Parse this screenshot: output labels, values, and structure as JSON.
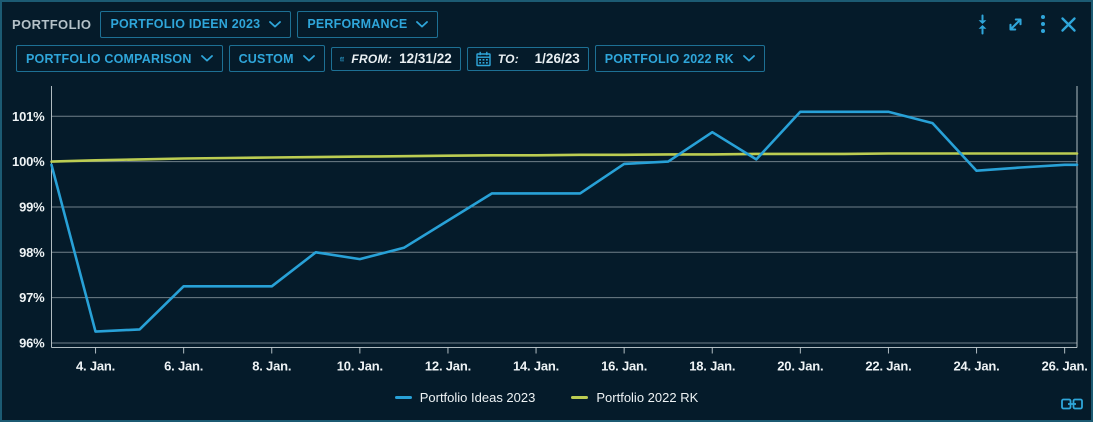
{
  "header": {
    "app_label": "PORTFOLIO",
    "portfolio_select": "PORTFOLIO IDEEN 2023",
    "view_select": "PERFORMANCE",
    "icons": [
      "collapse-vertical-icon",
      "expand-icon",
      "kebab-menu-icon",
      "close-icon"
    ]
  },
  "toolbar": {
    "comparison_select": "PORTFOLIO COMPARISON",
    "range_select": "CUSTOM",
    "from_label": "FROM:",
    "from_value": "12/31/22",
    "to_label": "TO:",
    "to_value": "1/26/23",
    "benchmark_select": "PORTFOLIO 2022 RK"
  },
  "colors": {
    "accent_cyan": "#2fa6da",
    "button_border": "#1d7094",
    "widget_border": "#1c5b73",
    "background": "#051b2a",
    "series_blue": "#28a1d7",
    "series_yellow": "#bccd52",
    "grid": "#c8d2d7",
    "text_white": "#eef3f5"
  },
  "chart_data": {
    "type": "line",
    "title": "",
    "xlabel": "",
    "ylabel": "",
    "x_unit": "day of January 2023",
    "x_days": [
      3,
      4,
      5,
      6,
      7,
      8,
      9,
      10,
      11,
      12,
      13,
      14,
      15,
      16,
      17,
      18,
      19,
      20,
      21,
      22,
      23,
      24,
      25,
      26
    ],
    "series": [
      {
        "name": "Portfolio Ideas 2023",
        "color": "#28a1d7",
        "values": [
          99.93,
          96.25,
          96.3,
          97.25,
          97.25,
          97.25,
          98.0,
          97.85,
          98.1,
          98.7,
          99.3,
          99.3,
          99.3,
          99.95,
          100.0,
          100.65,
          100.05,
          101.1,
          101.1,
          101.1,
          100.85,
          99.8,
          99.87,
          99.93
        ]
      },
      {
        "name": "Portfolio 2022 RK",
        "color": "#bccd52",
        "values": [
          100.0,
          100.03,
          100.05,
          100.07,
          100.08,
          100.09,
          100.1,
          100.11,
          100.12,
          100.13,
          100.14,
          100.14,
          100.15,
          100.15,
          100.16,
          100.16,
          100.17,
          100.17,
          100.17,
          100.18,
          100.18,
          100.18,
          100.18,
          100.18
        ]
      }
    ],
    "ylim": [
      95.9,
      101.58
    ],
    "ytick_values": [
      96,
      97,
      98,
      99,
      100,
      101
    ],
    "ytick_labels": [
      "96%",
      "97%",
      "98%",
      "99%",
      "100%",
      "101%"
    ],
    "xtick_days": [
      4,
      6,
      8,
      10,
      12,
      14,
      16,
      18,
      20,
      22,
      24,
      26
    ],
    "xtick_labels": [
      "4. Jan.",
      "6. Jan.",
      "8. Jan.",
      "10. Jan.",
      "12. Jan.",
      "14. Jan.",
      "16. Jan.",
      "18. Jan.",
      "20. Jan.",
      "22. Jan.",
      "24. Jan.",
      "26. Jan."
    ],
    "grid": "horizontal",
    "legend_position": "bottom-center"
  },
  "footer": {
    "link_icon": "link-icon"
  }
}
